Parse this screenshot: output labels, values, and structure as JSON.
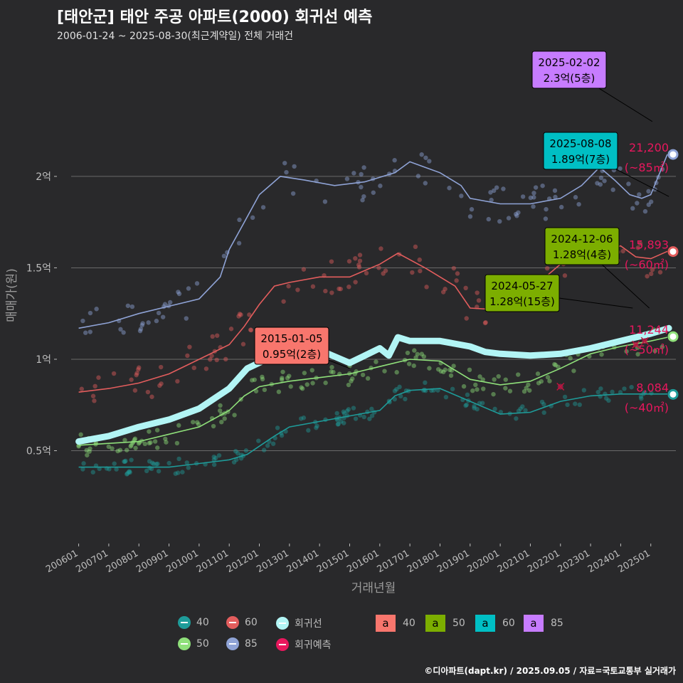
{
  "title": "[태안군] 태안 주공 아파트(2000) 회귀선 예측",
  "subtitle": "2006-01-24 ~ 2025-08-30(최근계약일) 전체 거래건",
  "caption": "©디아파트(dapt.kr) / 2025.09.05 / 자료=국토교통부 실거래가",
  "colors": {
    "background": "#29292b",
    "s40": "#1e9c9a",
    "s50": "#8fe07a",
    "s60": "#e35d5d",
    "s85": "#8fa3d6",
    "regression": "#b2f5f5",
    "prediction": "#e8175d",
    "box40": "#f8766d",
    "box50": "#7cae00",
    "box60": "#00bfc4",
    "box85": "#c77cff"
  },
  "chart_data": {
    "type": "scatter",
    "xlabel": "거래년월",
    "ylabel": "매매가(원)",
    "x_range": [
      "2005-10",
      "2025-11"
    ],
    "y_range": [
      0,
      2.7
    ],
    "y_ticks": [
      {
        "value": 0.5,
        "label": "0.5억"
      },
      {
        "value": 1.0,
        "label": "1억"
      },
      {
        "value": 1.5,
        "label": "1.5억"
      },
      {
        "value": 2.0,
        "label": "2억"
      }
    ],
    "x_ticks": [
      "200601",
      "200701",
      "200801",
      "200901",
      "201001",
      "201101",
      "201201",
      "201301",
      "201401",
      "201501",
      "201601",
      "201701",
      "201801",
      "201901",
      "202001",
      "202101",
      "202201",
      "202301",
      "202401",
      "202501"
    ],
    "grid": true,
    "series": [
      {
        "name": "40",
        "key": "s40",
        "trend": [
          [
            2006.0,
            0.41
          ],
          [
            2007.0,
            0.41
          ],
          [
            2008.0,
            0.41
          ],
          [
            2009.0,
            0.41
          ],
          [
            2010.0,
            0.43
          ],
          [
            2011.0,
            0.45
          ],
          [
            2011.6,
            0.48
          ],
          [
            2012.5,
            0.58
          ],
          [
            2013.0,
            0.63
          ],
          [
            2014.0,
            0.66
          ],
          [
            2015.0,
            0.69
          ],
          [
            2016.0,
            0.72
          ],
          [
            2016.5,
            0.8
          ],
          [
            2017.0,
            0.83
          ],
          [
            2018.0,
            0.84
          ],
          [
            2019.0,
            0.77
          ],
          [
            2020.0,
            0.7
          ],
          [
            2021.0,
            0.71
          ],
          [
            2022.0,
            0.77
          ],
          [
            2023.0,
            0.8
          ],
          [
            2024.0,
            0.81
          ],
          [
            2025.0,
            0.81
          ],
          [
            2025.55,
            0.81
          ]
        ],
        "end": 0.808,
        "end_label": "8,084",
        "end_area": "(~40㎡)"
      },
      {
        "name": "50",
        "key": "s50",
        "trend": [
          [
            2006.0,
            0.53
          ],
          [
            2007.0,
            0.54
          ],
          [
            2008.0,
            0.55
          ],
          [
            2009.0,
            0.59
          ],
          [
            2010.0,
            0.63
          ],
          [
            2011.0,
            0.72
          ],
          [
            2011.5,
            0.8
          ],
          [
            2012.0,
            0.85
          ],
          [
            2013.0,
            0.88
          ],
          [
            2014.0,
            0.9
          ],
          [
            2015.0,
            0.92
          ],
          [
            2016.0,
            0.96
          ],
          [
            2017.0,
            1.0
          ],
          [
            2018.0,
            0.99
          ],
          [
            2019.0,
            0.89
          ],
          [
            2020.0,
            0.86
          ],
          [
            2021.0,
            0.88
          ],
          [
            2022.0,
            0.95
          ],
          [
            2023.0,
            1.03
          ],
          [
            2024.0,
            1.07
          ],
          [
            2025.0,
            1.1
          ],
          [
            2025.55,
            1.12
          ]
        ],
        "end": 1.124,
        "end_label": "11,244",
        "end_area": "(~50㎡)"
      },
      {
        "name": "60",
        "key": "s60",
        "trend": [
          [
            2006.0,
            0.82
          ],
          [
            2007.0,
            0.84
          ],
          [
            2008.0,
            0.87
          ],
          [
            2009.0,
            0.92
          ],
          [
            2010.0,
            1.0
          ],
          [
            2011.0,
            1.08
          ],
          [
            2011.5,
            1.18
          ],
          [
            2012.0,
            1.3
          ],
          [
            2012.5,
            1.4
          ],
          [
            2013.0,
            1.42
          ],
          [
            2014.0,
            1.45
          ],
          [
            2015.0,
            1.45
          ],
          [
            2016.0,
            1.52
          ],
          [
            2016.6,
            1.58
          ],
          [
            2017.5,
            1.5
          ],
          [
            2018.5,
            1.4
          ],
          [
            2019.0,
            1.28
          ],
          [
            2020.0,
            1.27
          ],
          [
            2021.0,
            1.38
          ],
          [
            2022.0,
            1.52
          ],
          [
            2022.8,
            1.65
          ],
          [
            2023.5,
            1.6
          ],
          [
            2024.0,
            1.62
          ],
          [
            2024.5,
            1.56
          ],
          [
            2025.0,
            1.55
          ],
          [
            2025.55,
            1.59
          ]
        ],
        "end": 1.589,
        "end_label": "15,893",
        "end_area": "(~60㎡)"
      },
      {
        "name": "85",
        "key": "s85",
        "trend": [
          [
            2006.0,
            1.17
          ],
          [
            2007.0,
            1.2
          ],
          [
            2008.0,
            1.25
          ],
          [
            2009.0,
            1.29
          ],
          [
            2010.0,
            1.33
          ],
          [
            2010.7,
            1.45
          ],
          [
            2011.0,
            1.6
          ],
          [
            2011.5,
            1.75
          ],
          [
            2012.0,
            1.9
          ],
          [
            2012.7,
            2.0
          ],
          [
            2013.5,
            1.98
          ],
          [
            2014.5,
            1.95
          ],
          [
            2015.5,
            1.97
          ],
          [
            2016.5,
            2.02
          ],
          [
            2017.0,
            2.08
          ],
          [
            2017.5,
            2.05
          ],
          [
            2018.0,
            2.02
          ],
          [
            2018.7,
            1.95
          ],
          [
            2019.0,
            1.88
          ],
          [
            2020.0,
            1.85
          ],
          [
            2021.0,
            1.85
          ],
          [
            2022.0,
            1.88
          ],
          [
            2022.7,
            1.95
          ],
          [
            2023.3,
            2.05
          ],
          [
            2023.8,
            1.98
          ],
          [
            2024.3,
            1.9
          ],
          [
            2024.7,
            1.88
          ],
          [
            2025.0,
            1.9
          ],
          [
            2025.55,
            2.12
          ]
        ],
        "end": 2.12,
        "end_label": "21,200",
        "end_area": "(~85㎡)"
      }
    ],
    "regression": {
      "name": "회귀선",
      "points": [
        [
          2006.0,
          0.55
        ],
        [
          2007.0,
          0.58
        ],
        [
          2008.0,
          0.63
        ],
        [
          2009.0,
          0.67
        ],
        [
          2010.0,
          0.73
        ],
        [
          2011.0,
          0.84
        ],
        [
          2011.6,
          0.95
        ],
        [
          2012.5,
          1.02
        ],
        [
          2013.0,
          1.05
        ],
        [
          2014.0,
          1.05
        ],
        [
          2015.0,
          0.98
        ],
        [
          2015.5,
          1.02
        ],
        [
          2016.0,
          1.06
        ],
        [
          2016.3,
          1.02
        ],
        [
          2016.6,
          1.12
        ],
        [
          2017.0,
          1.1
        ],
        [
          2018.0,
          1.1
        ],
        [
          2019.0,
          1.07
        ],
        [
          2019.5,
          1.04
        ],
        [
          2020.0,
          1.03
        ],
        [
          2021.0,
          1.02
        ],
        [
          2022.0,
          1.03
        ],
        [
          2023.0,
          1.06
        ],
        [
          2024.0,
          1.1
        ],
        [
          2025.0,
          1.14
        ],
        [
          2025.6,
          1.17
        ]
      ]
    },
    "prediction_name": "회귀예측",
    "predictions": [
      [
        2023.4,
        2.15
      ],
      [
        2023.8,
        1.7
      ],
      [
        2022.0,
        0.85
      ],
      [
        2024.5,
        1.08
      ],
      [
        2024.8,
        1.1
      ]
    ],
    "annotations": [
      {
        "date": "2025-02-02",
        "text": "2.3억(5층)",
        "box": "box85",
        "value": 2.3
      },
      {
        "date": "2025-08-08",
        "text": "1.89억(7층)",
        "box": "box60",
        "value": 1.89
      },
      {
        "date": "2024-12-06",
        "text": "1.28억(4층)",
        "box": "box50",
        "value": 1.28
      },
      {
        "date": "2024-05-27",
        "text": "1.28억(15층)",
        "box": "box50",
        "value": 1.28
      },
      {
        "date": "2015-01-05",
        "text": "0.95억(2층)",
        "box": "box40",
        "value": 0.95
      }
    ]
  },
  "legend": {
    "s40": "40",
    "s60": "60",
    "s50": "50",
    "s85": "85",
    "regression": "회귀선",
    "prediction": "회귀예측",
    "boxes": [
      {
        "key": "box40",
        "glyph": "a",
        "label": "40"
      },
      {
        "key": "box50",
        "glyph": "a",
        "label": "50"
      },
      {
        "key": "box60",
        "glyph": "a",
        "label": "60"
      },
      {
        "key": "box85",
        "glyph": "a",
        "label": "85"
      }
    ]
  }
}
